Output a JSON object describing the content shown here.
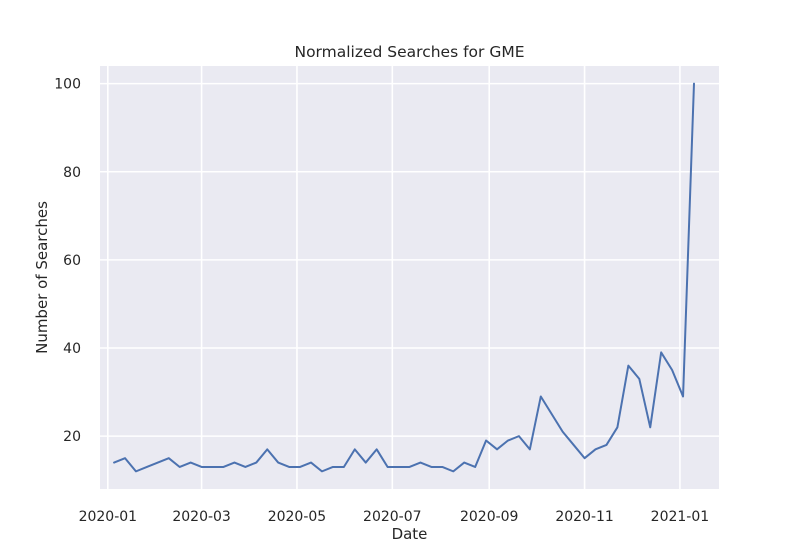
{
  "chart_data": {
    "type": "line",
    "title": "Normalized Searches for GME",
    "xlabel": "Date",
    "ylabel": "Number of Searches",
    "x_ticks": [
      "2020-01",
      "2020-03",
      "2020-05",
      "2020-07",
      "2020-09",
      "2020-11",
      "2021-01"
    ],
    "y_ticks": [
      20,
      40,
      60,
      80,
      100
    ],
    "xlim": [
      "2019-12-27",
      "2021-01-26"
    ],
    "ylim": [
      8,
      104
    ],
    "grid": true,
    "series": [
      {
        "color": "#4c72b0",
        "x": [
          "2020-01-05",
          "2020-01-12",
          "2020-01-19",
          "2020-01-26",
          "2020-02-02",
          "2020-02-09",
          "2020-02-16",
          "2020-02-23",
          "2020-03-01",
          "2020-03-08",
          "2020-03-15",
          "2020-03-22",
          "2020-03-29",
          "2020-04-05",
          "2020-04-12",
          "2020-04-19",
          "2020-04-26",
          "2020-05-03",
          "2020-05-10",
          "2020-05-17",
          "2020-05-24",
          "2020-05-31",
          "2020-06-07",
          "2020-06-14",
          "2020-06-21",
          "2020-06-28",
          "2020-07-05",
          "2020-07-12",
          "2020-07-19",
          "2020-07-26",
          "2020-08-02",
          "2020-08-09",
          "2020-08-16",
          "2020-08-23",
          "2020-08-30",
          "2020-09-06",
          "2020-09-13",
          "2020-09-20",
          "2020-09-27",
          "2020-10-04",
          "2020-10-11",
          "2020-10-18",
          "2020-10-25",
          "2020-11-01",
          "2020-11-08",
          "2020-11-15",
          "2020-11-22",
          "2020-11-29",
          "2020-12-06",
          "2020-12-13",
          "2020-12-20",
          "2020-12-27",
          "2021-01-03",
          "2021-01-10"
        ],
        "y": [
          14,
          15,
          12,
          13,
          14,
          15,
          13,
          14,
          13,
          13,
          13,
          14,
          13,
          14,
          17,
          14,
          13,
          13,
          14,
          12,
          13,
          13,
          17,
          14,
          17,
          13,
          13,
          13,
          14,
          13,
          13,
          12,
          14,
          13,
          19,
          17,
          19,
          20,
          17,
          29,
          25,
          21,
          18,
          15,
          17,
          18,
          22,
          36,
          33,
          22,
          39,
          35,
          29,
          100
        ]
      }
    ]
  }
}
